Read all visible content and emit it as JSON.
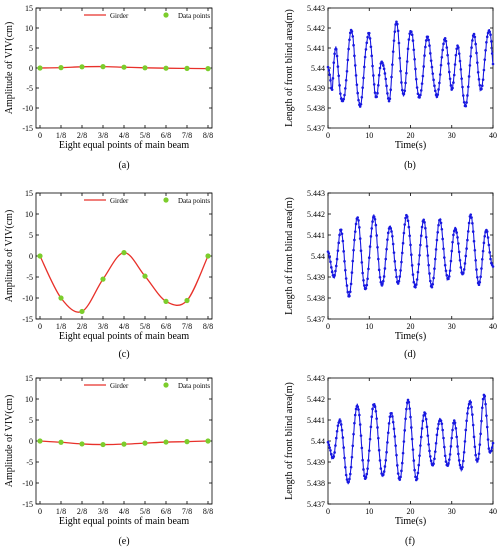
{
  "chart_data": [
    {
      "id": "a",
      "type": "line",
      "caption": "(a)",
      "xlabel": "Eight equal points of main beam",
      "ylabel": "Amplitude of VIV(cm)",
      "categories": [
        "0",
        "1/8",
        "2/8",
        "3/8",
        "4/8",
        "5/8",
        "6/8",
        "7/8",
        "8/8"
      ],
      "yticks": [
        "15",
        "10",
        "5",
        "0",
        "-5",
        "-10",
        "-15"
      ],
      "ylim": [
        -15,
        15
      ],
      "grid": false,
      "legend": [
        "Girder",
        "Data points"
      ],
      "legend_position": "top-center",
      "series": [
        {
          "name": "Girder",
          "kind": "curve",
          "color": "#e8312a",
          "values": [
            0,
            0.1,
            0.3,
            0.35,
            0.2,
            0.05,
            -0.05,
            -0.1,
            -0.15
          ]
        },
        {
          "name": "Data points",
          "kind": "markers",
          "color": "#7ccd2c",
          "values": [
            0,
            0.1,
            0.3,
            0.35,
            0.2,
            0.05,
            -0.05,
            -0.1,
            -0.15
          ]
        }
      ]
    },
    {
      "id": "b",
      "type": "line",
      "caption": "(b)",
      "xlabel": "Time(s)",
      "ylabel": "Length of front blind area(m)",
      "xticks": [
        "0",
        "10",
        "20",
        "30",
        "40"
      ],
      "xlim": [
        0,
        40
      ],
      "yticks": [
        "5.443",
        "5.442",
        "5.441",
        "5.44",
        "5.439",
        "5.438",
        "5.437"
      ],
      "ylim": [
        5.437,
        5.443
      ],
      "grid": false,
      "color": "#1818e0",
      "x": [
        0,
        0.5,
        1,
        1.5,
        2,
        2.5,
        3,
        3.5,
        4,
        4.5,
        5,
        5.5,
        6,
        6.5,
        7,
        7.5,
        8,
        8.5,
        9,
        9.5,
        10,
        10.5,
        11,
        11.5,
        12,
        12.5,
        13,
        13.5,
        14,
        14.5,
        15,
        15.5,
        16,
        16.5,
        17,
        17.5,
        18,
        18.5,
        19,
        19.5,
        20,
        20.5,
        21,
        21.5,
        22,
        22.5,
        23,
        23.5,
        24,
        24.5,
        25,
        25.5,
        26,
        26.5,
        27,
        27.5,
        28,
        28.5,
        29,
        29.5,
        30,
        30.5,
        31,
        31.5,
        32,
        32.5,
        33,
        33.5,
        34,
        34.5,
        35,
        35.5,
        36,
        36.5,
        37,
        37.5,
        38,
        38.5,
        39,
        39.5,
        40
      ],
      "y": [
        5.44,
        5.4396,
        5.4389,
        5.4405,
        5.441,
        5.4398,
        5.4387,
        5.4384,
        5.4386,
        5.4396,
        5.441,
        5.4418,
        5.4416,
        5.4404,
        5.4391,
        5.4383,
        5.4382,
        5.4392,
        5.4406,
        5.4414,
        5.4417,
        5.4409,
        5.4396,
        5.4386,
        5.4388,
        5.4398,
        5.4403,
        5.4401,
        5.4394,
        5.4386,
        5.4385,
        5.4398,
        5.4414,
        5.4423,
        5.4418,
        5.4402,
        5.4389,
        5.4387,
        5.4398,
        5.4412,
        5.4418,
        5.4416,
        5.4404,
        5.4392,
        5.4386,
        5.4387,
        5.4396,
        5.4409,
        5.4415,
        5.4413,
        5.4404,
        5.4395,
        5.4389,
        5.4386,
        5.4392,
        5.4404,
        5.4412,
        5.4414,
        5.4407,
        5.4396,
        5.4389,
        5.4395,
        5.4406,
        5.4411,
        5.4404,
        5.4392,
        5.4383,
        5.4382,
        5.439,
        5.4404,
        5.4414,
        5.4416,
        5.4408,
        5.4396,
        5.4389,
        5.4393,
        5.4404,
        5.4414,
        5.4419,
        5.4415,
        5.4402
      ]
    },
    {
      "id": "c",
      "type": "line",
      "caption": "(c)",
      "xlabel": "Eight equal points of main beam",
      "ylabel": "Amplitude of VIV(cm)",
      "categories": [
        "0",
        "1/8",
        "2/8",
        "3/8",
        "4/8",
        "5/8",
        "6/8",
        "7/8",
        "8/8"
      ],
      "yticks": [
        "15",
        "10",
        "5",
        "0",
        "-5",
        "-10",
        "-15"
      ],
      "ylim": [
        -15,
        15
      ],
      "grid": false,
      "legend": [
        "Girder",
        "Data points"
      ],
      "legend_position": "top-center",
      "series": [
        {
          "name": "Girder",
          "kind": "curve",
          "color": "#e8312a",
          "values": [
            0,
            -10,
            -13.2,
            -5.5,
            0.8,
            -4.8,
            -10.8,
            -10.6,
            0
          ]
        },
        {
          "name": "Data points",
          "kind": "markers",
          "color": "#7ccd2c",
          "values": [
            0,
            -10,
            -13.2,
            -5.5,
            0.8,
            -4.8,
            -10.8,
            -10.6,
            0
          ]
        }
      ]
    },
    {
      "id": "d",
      "type": "line",
      "caption": "(d)",
      "xlabel": "Time(s)",
      "ylabel": "Length of front blind area(m)",
      "xticks": [
        "0",
        "10",
        "20",
        "30",
        "40"
      ],
      "xlim": [
        0,
        40
      ],
      "yticks": [
        "5.443",
        "5.442",
        "5.441",
        "5.44",
        "5.439",
        "5.438",
        "5.437"
      ],
      "ylim": [
        5.437,
        5.443
      ],
      "grid": false,
      "color": "#1818e0",
      "x": [
        0,
        0.5,
        1,
        1.5,
        2,
        2.5,
        3,
        3.5,
        4,
        4.5,
        5,
        5.5,
        6,
        6.5,
        7,
        7.5,
        8,
        8.5,
        9,
        9.5,
        10,
        10.5,
        11,
        11.5,
        12,
        12.5,
        13,
        13.5,
        14,
        14.5,
        15,
        15.5,
        16,
        16.5,
        17,
        17.5,
        18,
        18.5,
        19,
        19.5,
        20,
        20.5,
        21,
        21.5,
        22,
        22.5,
        23,
        23.5,
        24,
        24.5,
        25,
        25.5,
        26,
        26.5,
        27,
        27.5,
        28,
        28.5,
        29,
        29.5,
        30,
        30.5,
        31,
        31.5,
        32,
        32.5,
        33,
        33.5,
        34,
        34.5,
        35,
        35.5,
        36,
        36.5,
        37,
        37.5,
        38,
        38.5,
        39,
        39.5,
        40
      ],
      "y": [
        5.4402,
        5.4398,
        5.4393,
        5.439,
        5.4395,
        5.4405,
        5.4412,
        5.4409,
        5.4398,
        5.4387,
        5.4381,
        5.4385,
        5.4397,
        5.441,
        5.4418,
        5.4415,
        5.4403,
        5.439,
        5.4384,
        5.4388,
        5.4399,
        5.4411,
        5.4419,
        5.4416,
        5.4404,
        5.4392,
        5.4386,
        5.4389,
        5.4399,
        5.4409,
        5.4414,
        5.4411,
        5.4401,
        5.4392,
        5.4387,
        5.4391,
        5.4402,
        5.4413,
        5.4419,
        5.4416,
        5.4405,
        5.4393,
        5.4386,
        5.4387,
        5.4396,
        5.4408,
        5.4416,
        5.4415,
        5.4405,
        5.4393,
        5.4386,
        5.4388,
        5.4398,
        5.441,
        5.4417,
        5.4414,
        5.4404,
        5.4394,
        5.4389,
        5.4392,
        5.4402,
        5.4411,
        5.4413,
        5.4407,
        5.4398,
        5.4392,
        5.4393,
        5.4402,
        5.4412,
        5.4419,
        5.4416,
        5.4405,
        5.4393,
        5.4387,
        5.439,
        5.44,
        5.441,
        5.4412,
        5.4405,
        5.4398,
        5.4395
      ]
    },
    {
      "id": "e",
      "type": "line",
      "caption": "(e)",
      "xlabel": "Eight equal points of main beam",
      "ylabel": "Amplitude of VIV(cm)",
      "categories": [
        "0",
        "1/8",
        "2/8",
        "3/8",
        "4/8",
        "5/8",
        "6/8",
        "7/8",
        "8/8"
      ],
      "yticks": [
        "15",
        "10",
        "5",
        "0",
        "-5",
        "-10",
        "-15"
      ],
      "ylim": [
        -15,
        15
      ],
      "grid": false,
      "legend": [
        "Girder",
        "Data points"
      ],
      "legend_position": "top-center",
      "series": [
        {
          "name": "Girder",
          "kind": "curve",
          "color": "#e8312a",
          "values": [
            0,
            -0.3,
            -0.7,
            -0.85,
            -0.75,
            -0.5,
            -0.25,
            -0.15,
            0
          ]
        },
        {
          "name": "Data points",
          "kind": "markers",
          "color": "#7ccd2c",
          "values": [
            0,
            -0.3,
            -0.7,
            -0.85,
            -0.75,
            -0.5,
            -0.25,
            -0.15,
            0
          ]
        }
      ]
    },
    {
      "id": "f",
      "type": "line",
      "caption": "(f)",
      "xlabel": "Time(s)",
      "ylabel": "Length of front blind area(m)",
      "xticks": [
        "0",
        "10",
        "20",
        "30",
        "40"
      ],
      "xlim": [
        0,
        40
      ],
      "yticks": [
        "5.443",
        "5.442",
        "5.441",
        "5.44",
        "5.439",
        "5.438",
        "5.437"
      ],
      "ylim": [
        5.437,
        5.443
      ],
      "grid": false,
      "color": "#1818e0",
      "x": [
        0,
        0.5,
        1,
        1.5,
        2,
        2.5,
        3,
        3.5,
        4,
        4.5,
        5,
        5.5,
        6,
        6.5,
        7,
        7.5,
        8,
        8.5,
        9,
        9.5,
        10,
        10.5,
        11,
        11.5,
        12,
        12.5,
        13,
        13.5,
        14,
        14.5,
        15,
        15.5,
        16,
        16.5,
        17,
        17.5,
        18,
        18.5,
        19,
        19.5,
        20,
        20.5,
        21,
        21.5,
        22,
        22.5,
        23,
        23.5,
        24,
        24.5,
        25,
        25.5,
        26,
        26.5,
        27,
        27.5,
        28,
        28.5,
        29,
        29.5,
        30,
        30.5,
        31,
        31.5,
        32,
        32.5,
        33,
        33.5,
        34,
        34.5,
        35,
        35.5,
        36,
        36.5,
        37,
        37.5,
        38,
        38.5,
        39,
        39.5,
        40
      ],
      "y": [
        5.44,
        5.4396,
        5.4392,
        5.4394,
        5.4401,
        5.4408,
        5.441,
        5.4403,
        5.4392,
        5.4383,
        5.438,
        5.4386,
        5.4398,
        5.441,
        5.4417,
        5.4414,
        5.4402,
        5.4389,
        5.4382,
        5.4385,
        5.4396,
        5.4409,
        5.4417,
        5.4416,
        5.4406,
        5.4393,
        5.4385,
        5.4384,
        5.4391,
        5.4402,
        5.4411,
        5.4413,
        5.4406,
        5.4395,
        5.4385,
        5.4382,
        5.4389,
        5.4403,
        5.4415,
        5.4419,
        5.4412,
        5.4398,
        5.4386,
        5.4382,
        5.4388,
        5.44,
        5.441,
        5.4413,
        5.4407,
        5.4397,
        5.439,
        5.4389,
        5.4395,
        5.4404,
        5.441,
        5.4409,
        5.4401,
        5.4392,
        5.4388,
        5.4392,
        5.4402,
        5.4409,
        5.4406,
        5.4396,
        5.4388,
        5.4387,
        5.4395,
        5.4407,
        5.4416,
        5.4419,
        5.4412,
        5.44,
        5.4391,
        5.4392,
        5.4404,
        5.4418,
        5.4421,
        5.441,
        5.4396,
        5.4395,
        5.4399
      ]
    }
  ]
}
